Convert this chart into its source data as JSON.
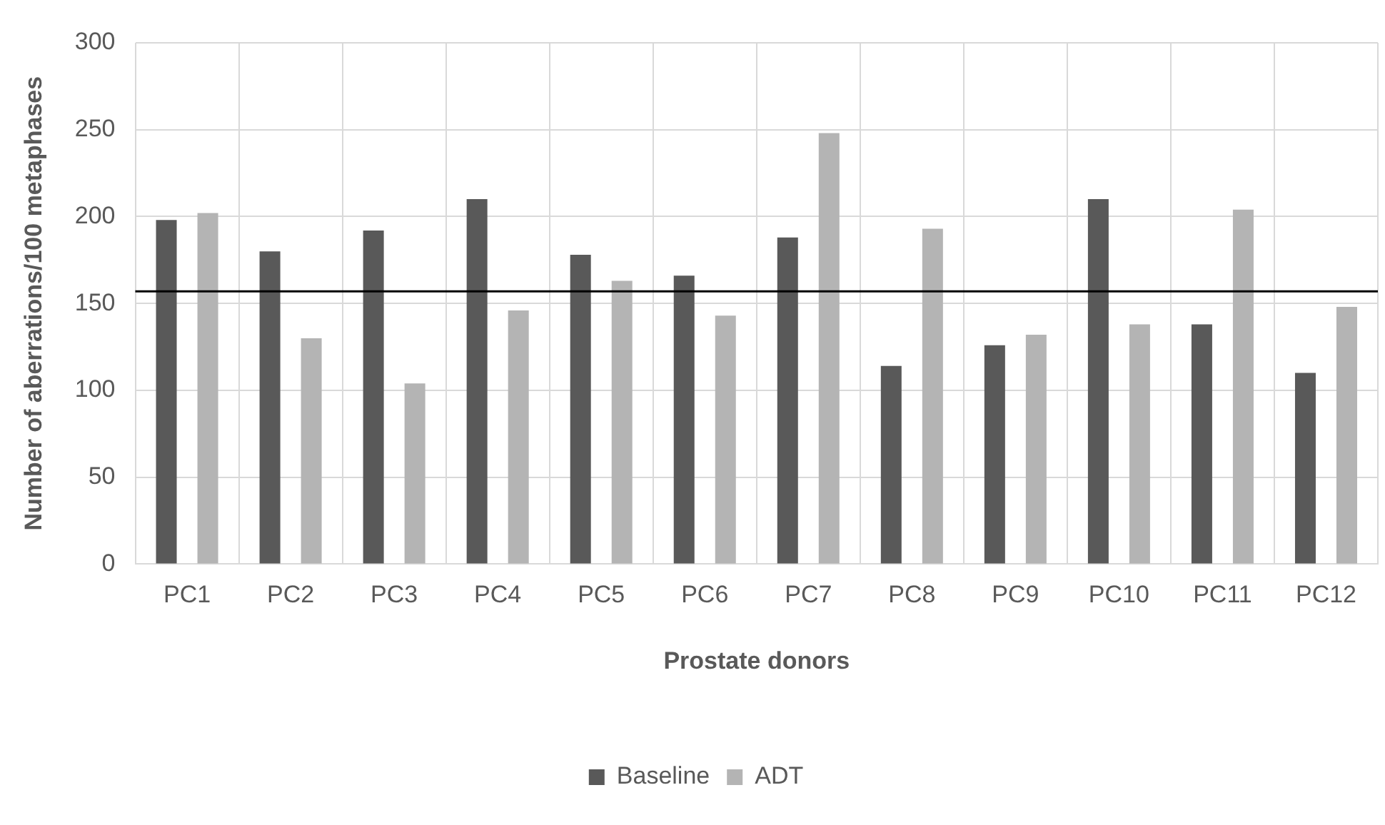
{
  "chart_data": {
    "type": "bar",
    "xlabel": "Prostate donors",
    "ylabel": "Number of aberrations/100 metaphases",
    "categories": [
      "PC1",
      "PC2",
      "PC3",
      "PC4",
      "PC5",
      "PC6",
      "PC7",
      "PC8",
      "PC9",
      "PC10",
      "PC11",
      "PC12"
    ],
    "series": [
      {
        "name": "Baseline",
        "color": "#595959",
        "values": [
          198,
          180,
          192,
          210,
          178,
          166,
          188,
          114,
          126,
          210,
          138,
          110
        ]
      },
      {
        "name": "ADT",
        "color": "#b4b4b4",
        "values": [
          202,
          130,
          104,
          146,
          163,
          143,
          248,
          193,
          132,
          138,
          204,
          148
        ]
      }
    ],
    "ylim": [
      0,
      300
    ],
    "yticks": [
      0,
      50,
      100,
      150,
      200,
      250,
      300
    ],
    "grid": true,
    "legend": "bottom",
    "ref_lines": [
      {
        "axis": "y",
        "value": 157,
        "color": "#000000"
      }
    ]
  }
}
